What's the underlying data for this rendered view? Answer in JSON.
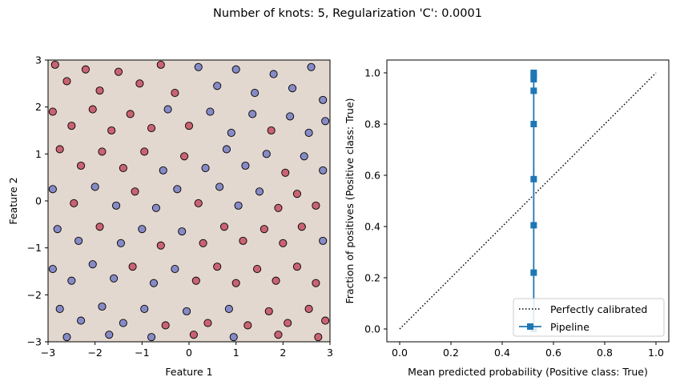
{
  "suptitle": "Number of knots: 5, Regularization 'C': 0.0001",
  "colors": {
    "background_fill": "#e3d8cf",
    "class_red": "#b40426",
    "class_blue": "#3b4cc0",
    "pipeline": "#1f77b4",
    "reference_line": "#000000"
  },
  "chart_data": [
    {
      "type": "scatter",
      "title": "",
      "xlabel": "Feature 1",
      "ylabel": "Feature 2",
      "xlim": [
        -3,
        3
      ],
      "ylim": [
        -3,
        3
      ],
      "xticks": [
        "−3",
        "−2",
        "−1",
        "0",
        "1",
        "2",
        "3"
      ],
      "yticks": [
        "−3",
        "−2",
        "−1",
        "0",
        "1",
        "2",
        "3"
      ],
      "grid": false,
      "decision_region": "uniform light beige (model predicts near-constant probability)",
      "series": [],
      "sample_points": [
        {
          "x": -2.85,
          "y": 2.9,
          "cls": "red"
        },
        {
          "x": -2.6,
          "y": 2.55,
          "cls": "red"
        },
        {
          "x": -2.2,
          "y": 2.8,
          "cls": "red"
        },
        {
          "x": -1.9,
          "y": 2.35,
          "cls": "red"
        },
        {
          "x": -1.5,
          "y": 2.75,
          "cls": "red"
        },
        {
          "x": -1.05,
          "y": 2.5,
          "cls": "red"
        },
        {
          "x": -0.6,
          "y": 2.9,
          "cls": "red"
        },
        {
          "x": -0.3,
          "y": 2.3,
          "cls": "red"
        },
        {
          "x": 0.2,
          "y": 2.85,
          "cls": "blue"
        },
        {
          "x": 0.6,
          "y": 2.45,
          "cls": "blue"
        },
        {
          "x": 1.0,
          "y": 2.8,
          "cls": "blue"
        },
        {
          "x": 1.4,
          "y": 2.3,
          "cls": "blue"
        },
        {
          "x": 1.8,
          "y": 2.7,
          "cls": "blue"
        },
        {
          "x": 2.2,
          "y": 2.4,
          "cls": "blue"
        },
        {
          "x": 2.6,
          "y": 2.85,
          "cls": "blue"
        },
        {
          "x": 2.85,
          "y": 2.15,
          "cls": "blue"
        },
        {
          "x": -2.9,
          "y": 1.9,
          "cls": "red"
        },
        {
          "x": -2.5,
          "y": 1.6,
          "cls": "red"
        },
        {
          "x": -2.05,
          "y": 1.95,
          "cls": "red"
        },
        {
          "x": -1.65,
          "y": 1.5,
          "cls": "red"
        },
        {
          "x": -1.25,
          "y": 1.85,
          "cls": "red"
        },
        {
          "x": -0.8,
          "y": 1.55,
          "cls": "red"
        },
        {
          "x": -0.45,
          "y": 1.95,
          "cls": "blue"
        },
        {
          "x": 0.0,
          "y": 1.6,
          "cls": "red"
        },
        {
          "x": 0.45,
          "y": 1.9,
          "cls": "blue"
        },
        {
          "x": 0.9,
          "y": 1.45,
          "cls": "blue"
        },
        {
          "x": 1.35,
          "y": 1.85,
          "cls": "blue"
        },
        {
          "x": 1.75,
          "y": 1.5,
          "cls": "red"
        },
        {
          "x": 2.15,
          "y": 1.8,
          "cls": "blue"
        },
        {
          "x": 2.55,
          "y": 1.45,
          "cls": "blue"
        },
        {
          "x": 2.9,
          "y": 1.7,
          "cls": "blue"
        },
        {
          "x": -2.75,
          "y": 1.1,
          "cls": "red"
        },
        {
          "x": -2.3,
          "y": 0.75,
          "cls": "red"
        },
        {
          "x": -1.85,
          "y": 1.05,
          "cls": "red"
        },
        {
          "x": -1.4,
          "y": 0.7,
          "cls": "red"
        },
        {
          "x": -0.95,
          "y": 1.05,
          "cls": "red"
        },
        {
          "x": -0.55,
          "y": 0.65,
          "cls": "blue"
        },
        {
          "x": -0.1,
          "y": 0.95,
          "cls": "red"
        },
        {
          "x": 0.35,
          "y": 0.7,
          "cls": "blue"
        },
        {
          "x": 0.8,
          "y": 1.1,
          "cls": "blue"
        },
        {
          "x": 1.2,
          "y": 0.75,
          "cls": "blue"
        },
        {
          "x": 1.65,
          "y": 1.0,
          "cls": "blue"
        },
        {
          "x": 2.05,
          "y": 0.6,
          "cls": "red"
        },
        {
          "x": 2.45,
          "y": 0.95,
          "cls": "blue"
        },
        {
          "x": 2.85,
          "y": 0.65,
          "cls": "blue"
        },
        {
          "x": -2.9,
          "y": 0.25,
          "cls": "blue"
        },
        {
          "x": -2.45,
          "y": -0.05,
          "cls": "red"
        },
        {
          "x": -2.0,
          "y": 0.3,
          "cls": "blue"
        },
        {
          "x": -1.55,
          "y": -0.1,
          "cls": "blue"
        },
        {
          "x": -1.15,
          "y": 0.2,
          "cls": "red"
        },
        {
          "x": -0.7,
          "y": -0.15,
          "cls": "blue"
        },
        {
          "x": -0.25,
          "y": 0.25,
          "cls": "blue"
        },
        {
          "x": 0.2,
          "y": -0.05,
          "cls": "red"
        },
        {
          "x": 0.65,
          "y": 0.3,
          "cls": "blue"
        },
        {
          "x": 1.05,
          "y": -0.1,
          "cls": "blue"
        },
        {
          "x": 1.5,
          "y": 0.2,
          "cls": "blue"
        },
        {
          "x": 1.9,
          "y": -0.15,
          "cls": "red"
        },
        {
          "x": 2.3,
          "y": 0.15,
          "cls": "red"
        },
        {
          "x": 2.7,
          "y": -0.1,
          "cls": "red"
        },
        {
          "x": -2.8,
          "y": -0.6,
          "cls": "blue"
        },
        {
          "x": -2.35,
          "y": -0.85,
          "cls": "blue"
        },
        {
          "x": -1.9,
          "y": -0.55,
          "cls": "red"
        },
        {
          "x": -1.45,
          "y": -0.9,
          "cls": "blue"
        },
        {
          "x": -1.0,
          "y": -0.6,
          "cls": "blue"
        },
        {
          "x": -0.6,
          "y": -0.95,
          "cls": "red"
        },
        {
          "x": -0.15,
          "y": -0.65,
          "cls": "blue"
        },
        {
          "x": 0.3,
          "y": -0.9,
          "cls": "red"
        },
        {
          "x": 0.75,
          "y": -0.55,
          "cls": "red"
        },
        {
          "x": 1.15,
          "y": -0.85,
          "cls": "red"
        },
        {
          "x": 1.6,
          "y": -0.6,
          "cls": "red"
        },
        {
          "x": 2.0,
          "y": -0.9,
          "cls": "red"
        },
        {
          "x": 2.4,
          "y": -0.55,
          "cls": "red"
        },
        {
          "x": 2.85,
          "y": -0.85,
          "cls": "blue"
        },
        {
          "x": -2.9,
          "y": -1.45,
          "cls": "blue"
        },
        {
          "x": -2.5,
          "y": -1.7,
          "cls": "blue"
        },
        {
          "x": -2.05,
          "y": -1.35,
          "cls": "blue"
        },
        {
          "x": -1.6,
          "y": -1.65,
          "cls": "blue"
        },
        {
          "x": -1.2,
          "y": -1.4,
          "cls": "red"
        },
        {
          "x": -0.75,
          "y": -1.75,
          "cls": "blue"
        },
        {
          "x": -0.3,
          "y": -1.45,
          "cls": "blue"
        },
        {
          "x": 0.15,
          "y": -1.7,
          "cls": "red"
        },
        {
          "x": 0.6,
          "y": -1.4,
          "cls": "red"
        },
        {
          "x": 1.0,
          "y": -1.75,
          "cls": "red"
        },
        {
          "x": 1.45,
          "y": -1.45,
          "cls": "red"
        },
        {
          "x": 1.85,
          "y": -1.7,
          "cls": "red"
        },
        {
          "x": 2.3,
          "y": -1.4,
          "cls": "red"
        },
        {
          "x": 2.7,
          "y": -1.75,
          "cls": "red"
        },
        {
          "x": -2.75,
          "y": -2.3,
          "cls": "blue"
        },
        {
          "x": -2.3,
          "y": -2.55,
          "cls": "blue"
        },
        {
          "x": -1.85,
          "y": -2.25,
          "cls": "blue"
        },
        {
          "x": -1.4,
          "y": -2.6,
          "cls": "blue"
        },
        {
          "x": -0.95,
          "y": -2.3,
          "cls": "blue"
        },
        {
          "x": -0.5,
          "y": -2.65,
          "cls": "red"
        },
        {
          "x": -0.05,
          "y": -2.35,
          "cls": "blue"
        },
        {
          "x": 0.4,
          "y": -2.6,
          "cls": "red"
        },
        {
          "x": 0.85,
          "y": -2.3,
          "cls": "blue"
        },
        {
          "x": 1.25,
          "y": -2.65,
          "cls": "red"
        },
        {
          "x": 1.7,
          "y": -2.35,
          "cls": "red"
        },
        {
          "x": 2.1,
          "y": -2.6,
          "cls": "red"
        },
        {
          "x": 2.55,
          "y": -2.3,
          "cls": "red"
        },
        {
          "x": 2.9,
          "y": -2.55,
          "cls": "red"
        },
        {
          "x": -2.6,
          "y": -2.9,
          "cls": "blue"
        },
        {
          "x": -1.7,
          "y": -2.85,
          "cls": "blue"
        },
        {
          "x": -0.8,
          "y": -2.9,
          "cls": "blue"
        },
        {
          "x": 0.1,
          "y": -2.85,
          "cls": "red"
        },
        {
          "x": 0.95,
          "y": -2.9,
          "cls": "blue"
        },
        {
          "x": 1.9,
          "y": -2.85,
          "cls": "red"
        },
        {
          "x": 2.75,
          "y": -2.9,
          "cls": "red"
        }
      ]
    },
    {
      "type": "line",
      "title": "",
      "xlabel": "Mean predicted probability (Positive class: True)",
      "ylabel": "Fraction of positives (Positive class: True)",
      "xlim": [
        -0.05,
        1.05
      ],
      "ylim": [
        -0.05,
        1.05
      ],
      "xticks": [
        "0.0",
        "0.2",
        "0.4",
        "0.6",
        "0.8",
        "1.0"
      ],
      "yticks": [
        "0.0",
        "0.2",
        "0.4",
        "0.6",
        "0.8",
        "1.0"
      ],
      "grid": false,
      "legend_position": "lower-right",
      "series": [
        {
          "name": "Perfectly calibrated",
          "style": "dotted",
          "color": "#000000",
          "x": [
            0.0,
            1.0
          ],
          "y": [
            0.0,
            1.0
          ]
        },
        {
          "name": "Pipeline",
          "style": "solid-square-markers",
          "color": "#1f77b4",
          "x": [
            0.523,
            0.523,
            0.523,
            0.523,
            0.523,
            0.523,
            0.523,
            0.523,
            0.523
          ],
          "y": [
            0.0,
            0.22,
            0.405,
            0.585,
            0.8,
            0.93,
            0.975,
            0.99,
            1.0
          ]
        }
      ]
    }
  ]
}
